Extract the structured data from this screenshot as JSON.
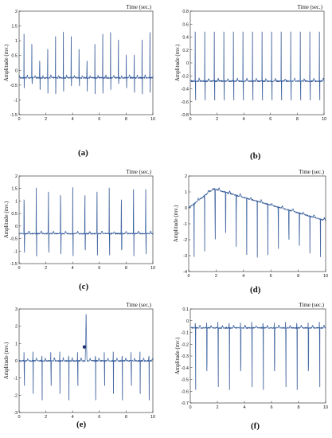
{
  "chart_data": [
    {
      "type": "line",
      "panel": "(a)",
      "title": "Time (sec.)",
      "ylabel": "Amplitude (mv.)",
      "xlim": [
        0,
        10
      ],
      "ylim": [
        -1.5,
        2
      ],
      "xticks": [
        0,
        2,
        4,
        6,
        8,
        10
      ],
      "yticks": [
        -1.5,
        -1,
        -0.5,
        0,
        0.5,
        1,
        1.5,
        2
      ],
      "grid": false,
      "baseline": -0.25,
      "peak": 1.3,
      "trough": -0.8,
      "beats_shown": 17
    },
    {
      "type": "line",
      "panel": "(b)",
      "title": "Time (sec.)",
      "ylabel": "Amplitude (mv.)",
      "xlim": [
        0,
        10
      ],
      "ylim": [
        -0.8,
        0.8
      ],
      "xticks": [
        0,
        2,
        4,
        6,
        8,
        10
      ],
      "yticks": [
        -0.8,
        -0.6,
        -0.4,
        -0.2,
        0,
        0.2,
        0.4,
        0.6,
        0.8
      ],
      "grid": false,
      "baseline": -0.28,
      "peak": 0.6,
      "trough": -0.62,
      "beats_shown": 14
    },
    {
      "type": "line",
      "panel": "(c)",
      "title": "Time (sec.)",
      "ylabel": "Amplitude (mv.)",
      "xlim": [
        0,
        10
      ],
      "ylim": [
        -1.5,
        2
      ],
      "xticks": [
        0,
        2,
        4,
        6,
        8,
        10
      ],
      "yticks": [
        -1.5,
        -1,
        -0.5,
        0,
        0.5,
        1,
        1.5,
        2
      ],
      "grid": false,
      "baseline": -0.3,
      "peak": 1.55,
      "trough": -1.2,
      "beats_shown": 11
    },
    {
      "type": "line",
      "panel": "(d)",
      "title": "Time (sec.)",
      "ylabel": "Amplitude (mv.)",
      "xlim": [
        0,
        10
      ],
      "ylim": [
        -4,
        2
      ],
      "xticks": [
        0,
        2,
        4,
        6,
        8,
        10
      ],
      "yticks": [
        -4,
        -3,
        -2,
        -1,
        0,
        1,
        2
      ],
      "grid": false,
      "baseline_start": 0.0,
      "baseline_peak": 1.2,
      "baseline_end": -0.8,
      "trough": -3.1,
      "beats_shown": 13
    },
    {
      "type": "line",
      "panel": "(e)",
      "title": "Time (sec.)",
      "ylabel": "Amplitude (mv.)",
      "xlim": [
        0,
        10
      ],
      "ylim": [
        -3,
        3
      ],
      "xticks": [
        0,
        2,
        4,
        6,
        8,
        10
      ],
      "yticks": [
        -3,
        -2,
        -1,
        0,
        1,
        2,
        3
      ],
      "grid": false,
      "baseline": 0.0,
      "peak": 0.55,
      "trough": -2.3,
      "beats_shown": 15,
      "ectopic_beat_x": 5.0,
      "ectopic_beat_peak": 2.7
    },
    {
      "type": "line",
      "panel": "(f)",
      "title": "Time (sec.)",
      "ylabel": "Amplitude (mv.)",
      "xlim": [
        0,
        10
      ],
      "ylim": [
        -0.7,
        0.1
      ],
      "xticks": [
        0,
        2,
        4,
        6,
        8,
        10
      ],
      "yticks": [
        -0.7,
        -0.6,
        -0.5,
        -0.4,
        -0.3,
        -0.2,
        -0.1,
        0,
        0.1
      ],
      "grid": false,
      "baseline": -0.06,
      "trough": -0.6,
      "beats_shown": 12
    }
  ],
  "colors": {
    "signal": "#3a6fb0",
    "signal_dark": "#21306e",
    "axes": "#222222"
  }
}
